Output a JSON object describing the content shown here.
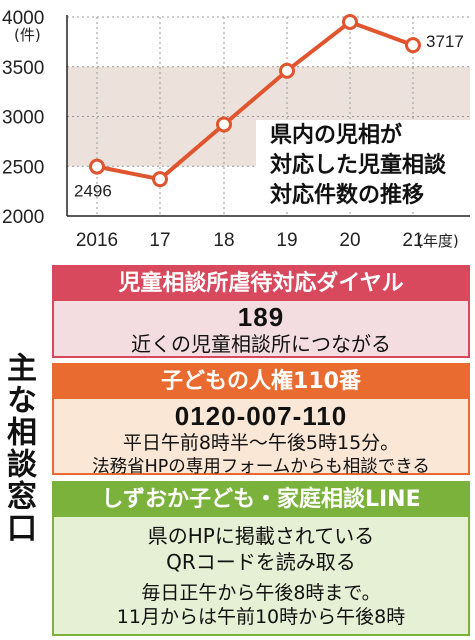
{
  "chart_data": {
    "type": "line",
    "title_lines": [
      "県内の児相が",
      "対応した児童相談",
      "対応件数の推移"
    ],
    "unit_label": "(件)",
    "x_categories": [
      "2016",
      "17",
      "18",
      "19",
      "20",
      "21"
    ],
    "x_unit_label": "(年度)",
    "values": [
      2496,
      2370,
      2920,
      3460,
      3950,
      3717
    ],
    "labeled_values": {
      "first": "2496",
      "last": "3717"
    },
    "yticks": [
      "2000",
      "2500",
      "3000",
      "3500",
      "4000"
    ],
    "ylim": [
      2000,
      4000
    ],
    "shaded_band": [
      2500,
      3500
    ],
    "colors": {
      "line": "#e0542e",
      "band": "#ece2db",
      "grid": "#999999"
    },
    "grid": true
  },
  "side_label": "主な相談窓口",
  "boxes": [
    {
      "header": "児童相談所虐待対応ダイヤル",
      "number": "189",
      "lines": [
        "近くの児童相談所につながる"
      ],
      "colors": {
        "header": "#d9495e",
        "body": "#f4dde1"
      }
    },
    {
      "header": "子どもの人権110番",
      "number": "0120-007-110",
      "lines": [
        "平日午前8時半〜午後5時15分。",
        "法務省HPの専用フォームからも相談できる"
      ],
      "colors": {
        "header": "#ea6b2f",
        "body": "#fbe7d6"
      }
    },
    {
      "header": "しずおか子ども・家庭相談LINE",
      "lines_big": [
        "県のHPに掲載されている",
        "QRコードを読み取る"
      ],
      "lines": [
        "毎日正午から午後8時まで。",
        "11月からは午前10時から午後8時"
      ],
      "colors": {
        "header": "#7ab23c",
        "body": "#e6f0d5"
      }
    }
  ]
}
